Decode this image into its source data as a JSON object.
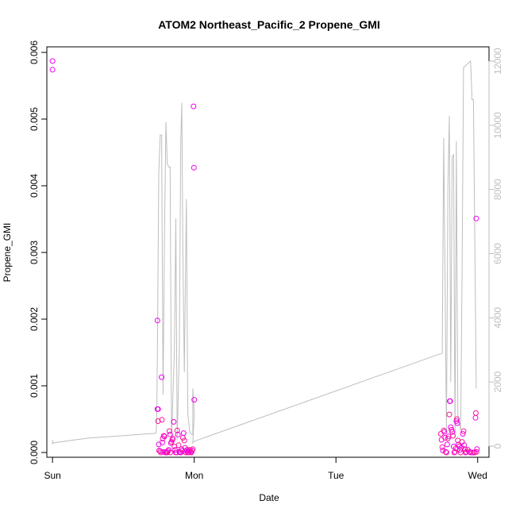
{
  "chart_data": {
    "type": "scatter",
    "title": "ATOM2 Northeast_Pacific_2 Propene_GMI",
    "xlabel": "Date",
    "ylabel": "Propene_GMI",
    "x_unit": "days since Sunday 00:00",
    "xlim": [
      -0.04,
      3.08
    ],
    "ylim": [
      0,
      0.006
    ],
    "y2lim": [
      0,
      12000
    ],
    "grid": false,
    "legend": "none",
    "x_ticks": [
      {
        "value": 0,
        "label": "Sun"
      },
      {
        "value": 1,
        "label": "Mon"
      },
      {
        "value": 2,
        "label": "Tue"
      },
      {
        "value": 3,
        "label": "Wed"
      }
    ],
    "y_ticks": [
      {
        "value": 0,
        "label": "0.000"
      },
      {
        "value": 0.001,
        "label": "0.001"
      },
      {
        "value": 0.002,
        "label": "0.002"
      },
      {
        "value": 0.003,
        "label": "0.003"
      },
      {
        "value": 0.004,
        "label": "0.004"
      },
      {
        "value": 0.005,
        "label": "0.005"
      },
      {
        "value": 0.006,
        "label": "0.006"
      }
    ],
    "y2_ticks": [
      {
        "value": 0,
        "label": "0"
      },
      {
        "value": 2000,
        "label": "2000"
      },
      {
        "value": 4000,
        "label": "4000"
      },
      {
        "value": 6000,
        "label": "6000"
      },
      {
        "value": 8000,
        "label": "8000"
      },
      {
        "value": 10000,
        "label": "10000"
      },
      {
        "value": 12000,
        "label": "12000"
      }
    ],
    "colors": {
      "points_light": "#ee00ee",
      "points_dark": "#ff1493",
      "altitude_line": "#bebebe"
    },
    "series": [
      {
        "type": "scatter",
        "axis": "left",
        "points": [
          [
            0.0,
            0.00587
          ],
          [
            0.0,
            0.00574
          ],
          [
            0.74,
            0.00198
          ],
          [
            0.74,
            0.00065
          ],
          [
            0.745,
            0.00065
          ],
          [
            0.745,
            0.00047
          ],
          [
            0.75,
            0.00012
          ],
          [
            0.752,
            3e-05
          ],
          [
            0.76,
            2e-05
          ],
          [
            0.765,
            0.0
          ],
          [
            0.77,
            0.00113
          ],
          [
            0.772,
            0.00049
          ],
          [
            0.775,
            0.00015
          ],
          [
            0.778,
            0.00021
          ],
          [
            0.782,
            1e-05
          ],
          [
            0.785,
            0.00025
          ],
          [
            0.79,
            0.00024
          ],
          [
            0.795,
            0.0
          ],
          [
            0.8,
            1e-05
          ],
          [
            0.805,
            0.0
          ],
          [
            0.81,
            0.0
          ],
          [
            0.815,
            2e-05
          ],
          [
            0.82,
            4e-05
          ],
          [
            0.825,
            0.00032
          ],
          [
            0.83,
            0.00027
          ],
          [
            0.832,
            0.0
          ],
          [
            0.835,
            0.00014
          ],
          [
            0.84,
            0.00016
          ],
          [
            0.845,
            0.00019
          ],
          [
            0.85,
            0.00021
          ],
          [
            0.855,
            0.00046
          ],
          [
            0.86,
            9e-05
          ],
          [
            0.865,
            4e-05
          ],
          [
            0.87,
            0.0
          ],
          [
            0.875,
            0.0
          ],
          [
            0.88,
            0.00033
          ],
          [
            0.885,
            0.00027
          ],
          [
            0.89,
            0.00011
          ],
          [
            0.895,
            1e-05
          ],
          [
            0.9,
            0.0
          ],
          [
            0.905,
            0.0
          ],
          [
            0.91,
            5e-05
          ],
          [
            0.915,
            3e-05
          ],
          [
            0.92,
            0.00022
          ],
          [
            0.925,
            0.00029
          ],
          [
            0.93,
            0.00018
          ],
          [
            0.935,
            7e-05
          ],
          [
            0.94,
            0.0
          ],
          [
            0.945,
            2e-05
          ],
          [
            0.95,
            4e-05
          ],
          [
            0.955,
            0.0
          ],
          [
            0.96,
            0.0
          ],
          [
            0.965,
            2e-05
          ],
          [
            0.97,
            4e-05
          ],
          [
            0.975,
            1e-05
          ],
          [
            0.98,
            0.0
          ],
          [
            0.985,
            3e-05
          ],
          [
            0.99,
            5e-05
          ],
          [
            0.995,
            0.00519
          ],
          [
            0.998,
            0.00427
          ],
          [
            1.0,
            0.00079
          ],
          [
            2.74,
            0.00028
          ],
          [
            2.745,
            0.00019
          ],
          [
            2.75,
            8e-05
          ],
          [
            2.755,
            3e-05
          ],
          [
            2.76,
            0.00033
          ],
          [
            2.765,
            0.00031
          ],
          [
            2.77,
            0.00022
          ],
          [
            2.775,
            1e-05
          ],
          [
            2.78,
            0.0
          ],
          [
            2.785,
            0.00012
          ],
          [
            2.79,
            0.00021
          ],
          [
            2.795,
            0.00024
          ],
          [
            2.8,
            0.00057
          ],
          [
            2.803,
            0.00077
          ],
          [
            2.806,
            0.00077
          ],
          [
            2.81,
            0.00038
          ],
          [
            2.815,
            0.00034
          ],
          [
            2.82,
            0.00031
          ],
          [
            2.825,
            0.00025
          ],
          [
            2.83,
            9e-05
          ],
          [
            2.835,
            0.0
          ],
          [
            2.84,
            1e-05
          ],
          [
            2.845,
            6e-05
          ],
          [
            2.85,
            0.00047
          ],
          [
            2.853,
            0.0005
          ],
          [
            2.856,
            0.00044
          ],
          [
            2.86,
            0.00018
          ],
          [
            2.865,
            0.00012
          ],
          [
            2.87,
            9e-05
          ],
          [
            2.875,
            4e-05
          ],
          [
            2.88,
            0.0
          ],
          [
            2.885,
            7e-05
          ],
          [
            2.89,
            0.00016
          ],
          [
            2.895,
            0.00028
          ],
          [
            2.9,
            0.00032
          ],
          [
            2.905,
            0.00011
          ],
          [
            2.91,
            5e-05
          ],
          [
            2.915,
            0.0
          ],
          [
            2.92,
            1e-05
          ],
          [
            2.93,
            4e-05
          ],
          [
            2.94,
            1e-05
          ],
          [
            2.95,
            0.0
          ],
          [
            2.96,
            0.0
          ],
          [
            2.97,
            0.0
          ],
          [
            2.98,
            0.0
          ],
          [
            2.985,
            0.00052
          ],
          [
            2.987,
            0.00059
          ],
          [
            2.99,
            0.00351
          ],
          [
            2.992,
            1e-05
          ],
          [
            2.995,
            5e-05
          ]
        ]
      },
      {
        "type": "line",
        "axis": "right",
        "name": "",
        "points": [
          [
            0.0,
            60
          ],
          [
            0.0,
            200
          ],
          [
            0.0,
            100
          ],
          [
            0.25,
            250
          ],
          [
            0.5,
            330
          ],
          [
            0.73,
            400
          ],
          [
            0.735,
            700
          ],
          [
            0.74,
            3000
          ],
          [
            0.75,
            8500
          ],
          [
            0.76,
            9700
          ],
          [
            0.77,
            9700
          ],
          [
            0.78,
            1600
          ],
          [
            0.79,
            6500
          ],
          [
            0.8,
            10100
          ],
          [
            0.81,
            8800
          ],
          [
            0.82,
            8700
          ],
          [
            0.83,
            8700
          ],
          [
            0.84,
            200
          ],
          [
            0.86,
            3000
          ],
          [
            0.87,
            7100
          ],
          [
            0.88,
            200
          ],
          [
            0.895,
            3000
          ],
          [
            0.905,
            9500
          ],
          [
            0.912,
            10700
          ],
          [
            0.92,
            6000
          ],
          [
            0.93,
            2300
          ],
          [
            0.945,
            7700
          ],
          [
            0.955,
            1000
          ],
          [
            0.97,
            400
          ],
          [
            0.99,
            350
          ],
          [
            0.99,
            1800
          ],
          [
            1.0,
            1000
          ],
          [
            0.99,
            100
          ],
          [
            1.0,
            150
          ],
          [
            2.75,
            2900
          ],
          [
            2.76,
            9600
          ],
          [
            2.78,
            500
          ],
          [
            2.79,
            8000
          ],
          [
            2.8,
            10300
          ],
          [
            2.81,
            2000
          ],
          [
            2.82,
            9000
          ],
          [
            2.83,
            9100
          ],
          [
            2.84,
            300
          ],
          [
            2.85,
            9500
          ],
          [
            2.86,
            1000
          ],
          [
            2.88,
            500
          ],
          [
            2.89,
            5500
          ],
          [
            2.9,
            11800
          ],
          [
            2.95,
            12000
          ],
          [
            2.96,
            10800
          ],
          [
            2.97,
            10800
          ],
          [
            2.99,
            1800
          ]
        ]
      }
    ]
  }
}
